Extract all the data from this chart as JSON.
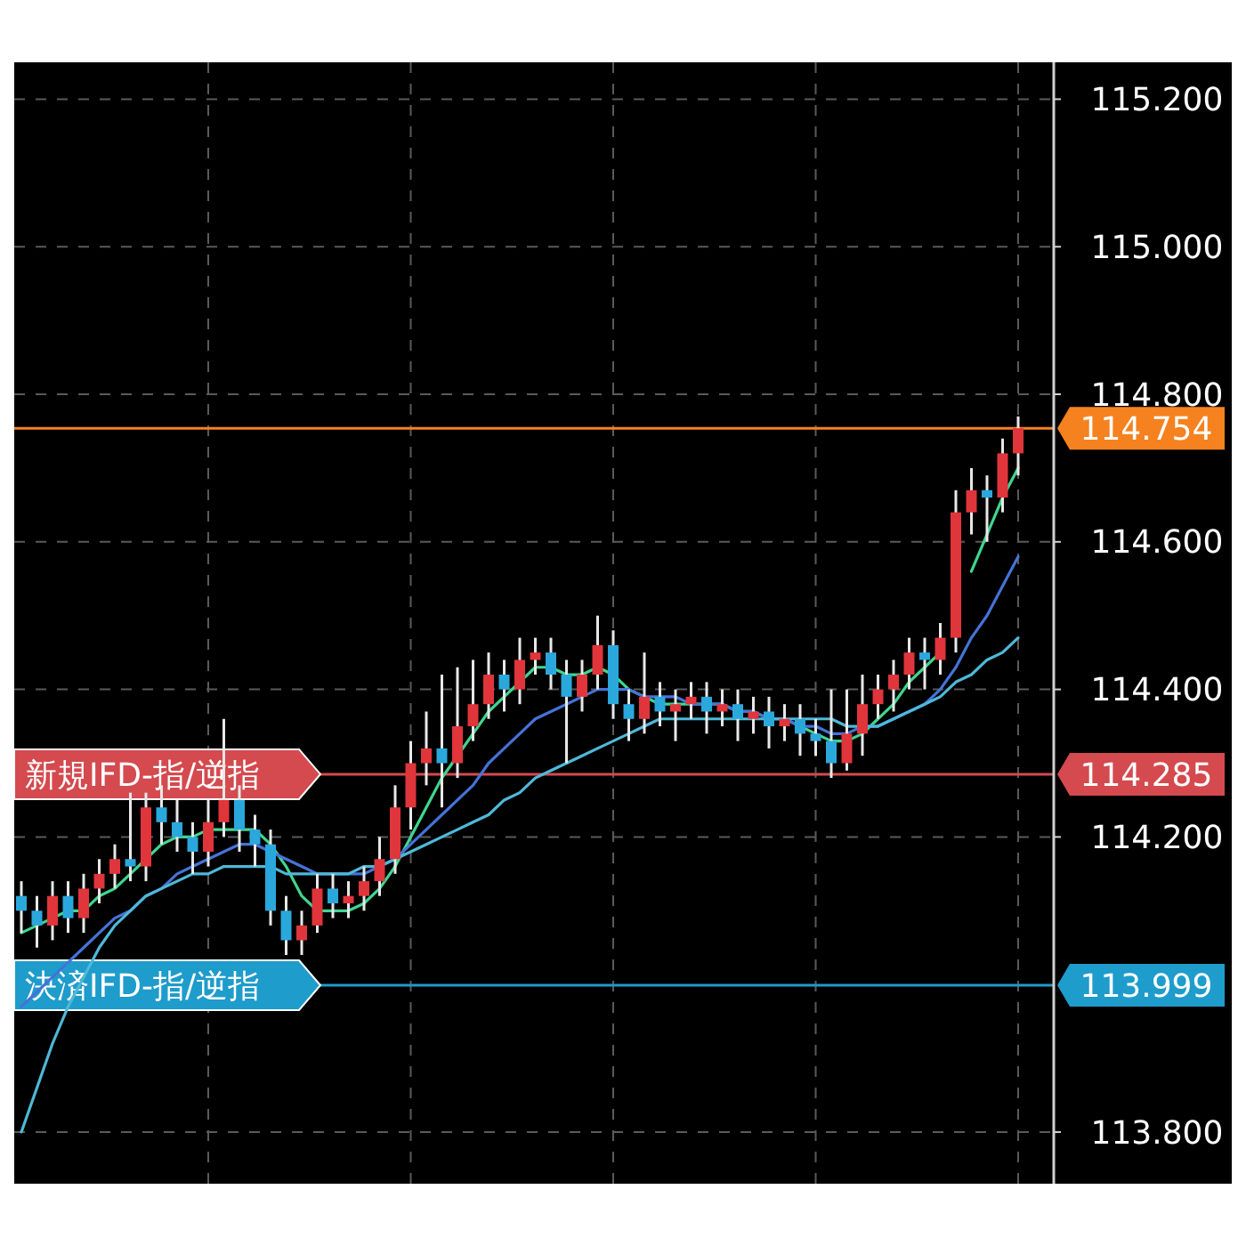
{
  "chart_data": {
    "type": "candlestick",
    "categories": [
      null,
      null,
      null,
      null,
      null,
      null,
      null,
      null,
      null,
      null,
      null,
      null,
      null,
      null,
      null,
      null,
      null,
      null,
      null,
      null,
      null,
      null,
      null,
      null,
      null,
      null,
      null,
      null,
      null,
      null,
      null,
      null,
      null,
      null,
      null,
      null,
      null,
      null,
      null,
      null,
      null,
      null,
      null,
      null,
      null,
      null,
      null,
      null,
      null,
      null,
      null,
      null,
      null,
      null,
      null,
      null,
      null,
      null,
      null,
      null,
      null,
      null,
      null,
      null,
      null
    ],
    "ohlc": [
      [
        114.12,
        114.14,
        114.07,
        114.1
      ],
      [
        114.1,
        114.12,
        114.05,
        114.08
      ],
      [
        114.08,
        114.14,
        114.06,
        114.12
      ],
      [
        114.12,
        114.14,
        114.07,
        114.09
      ],
      [
        114.09,
        114.15,
        114.07,
        114.13
      ],
      [
        114.13,
        114.17,
        114.11,
        114.15
      ],
      [
        114.15,
        114.19,
        114.13,
        114.17
      ],
      [
        114.17,
        114.26,
        114.14,
        114.16
      ],
      [
        114.16,
        114.26,
        114.14,
        114.24
      ],
      [
        114.24,
        114.27,
        114.19,
        114.22
      ],
      [
        114.22,
        114.25,
        114.18,
        114.2
      ],
      [
        114.2,
        114.22,
        114.15,
        114.18
      ],
      [
        114.18,
        114.25,
        114.16,
        114.22
      ],
      [
        114.22,
        114.36,
        114.2,
        114.25
      ],
      [
        114.25,
        114.27,
        114.18,
        114.21
      ],
      [
        114.21,
        114.23,
        114.16,
        114.19
      ],
      [
        114.19,
        114.21,
        114.08,
        114.1
      ],
      [
        114.1,
        114.12,
        114.04,
        114.06
      ],
      [
        114.06,
        114.1,
        114.04,
        114.08
      ],
      [
        114.08,
        114.15,
        114.07,
        114.13
      ],
      [
        114.13,
        114.15,
        114.09,
        114.11
      ],
      [
        114.11,
        114.14,
        114.09,
        114.12
      ],
      [
        114.12,
        114.16,
        114.1,
        114.14
      ],
      [
        114.14,
        114.2,
        114.12,
        114.17
      ],
      [
        114.17,
        114.27,
        114.15,
        114.24
      ],
      [
        114.24,
        114.33,
        114.21,
        114.3
      ],
      [
        114.3,
        114.37,
        114.27,
        114.32
      ],
      [
        114.32,
        114.42,
        114.24,
        114.3
      ],
      [
        114.3,
        114.43,
        114.28,
        114.35
      ],
      [
        114.35,
        114.44,
        114.33,
        114.38
      ],
      [
        114.38,
        114.45,
        114.36,
        114.42
      ],
      [
        114.42,
        114.44,
        114.37,
        114.4
      ],
      [
        114.4,
        114.47,
        114.38,
        114.44
      ],
      [
        114.44,
        114.47,
        114.42,
        114.45
      ],
      [
        114.45,
        114.47,
        114.4,
        114.42
      ],
      [
        114.42,
        114.44,
        114.3,
        114.39
      ],
      [
        114.39,
        114.44,
        114.37,
        114.42
      ],
      [
        114.42,
        114.5,
        114.4,
        114.46
      ],
      [
        114.46,
        114.48,
        114.36,
        114.38
      ],
      [
        114.38,
        114.4,
        114.33,
        114.36
      ],
      [
        114.36,
        114.45,
        114.34,
        114.39
      ],
      [
        114.39,
        114.41,
        114.35,
        114.37
      ],
      [
        114.37,
        114.4,
        114.33,
        114.38
      ],
      [
        114.38,
        114.41,
        114.36,
        114.39
      ],
      [
        114.39,
        114.41,
        114.34,
        114.37
      ],
      [
        114.37,
        114.4,
        114.35,
        114.38
      ],
      [
        114.38,
        114.4,
        114.33,
        114.36
      ],
      [
        114.36,
        114.39,
        114.34,
        114.37
      ],
      [
        114.37,
        114.39,
        114.32,
        114.35
      ],
      [
        114.35,
        114.38,
        114.33,
        114.36
      ],
      [
        114.36,
        114.38,
        114.31,
        114.34
      ],
      [
        114.34,
        114.36,
        114.31,
        114.33
      ],
      [
        114.33,
        114.4,
        114.28,
        114.3
      ],
      [
        114.3,
        114.4,
        114.29,
        114.34
      ],
      [
        114.34,
        114.42,
        114.31,
        114.38
      ],
      [
        114.38,
        114.42,
        114.36,
        114.4
      ],
      [
        114.4,
        114.44,
        114.37,
        114.42
      ],
      [
        114.42,
        114.47,
        114.4,
        114.45
      ],
      [
        114.45,
        114.47,
        114.4,
        114.44
      ],
      [
        114.44,
        114.49,
        114.42,
        114.47
      ],
      [
        114.47,
        114.67,
        114.45,
        114.64
      ],
      [
        114.64,
        114.7,
        114.61,
        114.67
      ],
      [
        114.67,
        114.69,
        114.6,
        114.66
      ],
      [
        114.66,
        114.74,
        114.64,
        114.72
      ],
      [
        114.72,
        114.77,
        114.69,
        114.754
      ]
    ],
    "series": [
      {
        "type": "line",
        "color": "#3fd68f",
        "values": [
          114.07,
          114.08,
          114.09,
          114.1,
          114.1,
          114.12,
          114.13,
          114.15,
          114.17,
          114.19,
          114.2,
          114.2,
          114.21,
          114.21,
          114.21,
          114.21,
          114.19,
          114.16,
          114.12,
          114.1,
          114.1,
          114.1,
          114.11,
          114.13,
          114.16,
          114.2,
          114.24,
          114.28,
          114.31,
          114.34,
          114.37,
          114.39,
          114.41,
          114.43,
          114.43,
          114.42,
          114.42,
          114.43,
          114.42,
          114.4,
          114.39,
          114.38,
          114.38,
          114.38,
          114.38,
          114.38,
          114.37,
          114.37,
          114.36,
          114.36,
          114.35,
          114.34,
          114.33,
          114.33,
          114.34,
          114.36,
          114.38,
          114.41,
          114.43,
          114.45,
          null,
          114.56,
          114.61,
          114.66,
          114.7
        ]
      },
      {
        "type": "line",
        "color": "#4573d8",
        "values": [
          113.97,
          113.99,
          114.01,
          114.03,
          114.05,
          114.07,
          114.09,
          114.1,
          114.12,
          114.13,
          114.15,
          114.16,
          114.17,
          114.18,
          114.19,
          114.19,
          114.18,
          114.17,
          114.16,
          114.15,
          114.15,
          114.15,
          114.15,
          114.16,
          114.17,
          114.19,
          114.21,
          114.23,
          114.25,
          114.27,
          114.3,
          114.32,
          114.34,
          114.36,
          114.37,
          114.38,
          114.39,
          114.4,
          114.4,
          114.4,
          114.39,
          114.39,
          114.39,
          114.38,
          114.38,
          114.38,
          114.37,
          114.37,
          114.36,
          114.36,
          114.35,
          114.35,
          114.34,
          114.34,
          114.35,
          114.35,
          114.36,
          114.37,
          114.38,
          114.4,
          114.43,
          114.47,
          114.5,
          114.54,
          114.58
        ]
      },
      {
        "type": "line",
        "color": "#4fb8d8",
        "values": [
          113.8,
          113.86,
          113.92,
          113.97,
          114.01,
          114.05,
          114.08,
          114.1,
          114.12,
          114.13,
          114.14,
          114.15,
          114.15,
          114.16,
          114.16,
          114.16,
          114.16,
          114.15,
          114.15,
          114.15,
          114.15,
          114.15,
          114.16,
          114.16,
          114.17,
          114.18,
          114.19,
          114.2,
          114.21,
          114.22,
          114.23,
          114.25,
          114.26,
          114.28,
          114.29,
          114.3,
          114.31,
          114.32,
          114.33,
          114.34,
          114.35,
          114.36,
          114.36,
          114.36,
          114.36,
          114.36,
          114.36,
          114.36,
          114.36,
          114.36,
          114.36,
          114.36,
          114.36,
          114.35,
          114.35,
          114.35,
          114.36,
          114.37,
          114.38,
          114.39,
          114.41,
          114.42,
          114.44,
          114.45,
          114.47
        ]
      }
    ],
    "ylim": [
      113.73,
      115.25
    ],
    "yticks": [
      {
        "value": 113.8,
        "label": "113.800"
      },
      {
        "value": 114.2,
        "label": "114.200"
      },
      {
        "value": 114.4,
        "label": "114.400"
      },
      {
        "value": 114.6,
        "label": "114.600"
      },
      {
        "value": 114.8,
        "label": "114.800"
      },
      {
        "value": 115.0,
        "label": "115.000"
      },
      {
        "value": 115.2,
        "label": "115.200"
      }
    ],
    "ref_lines": [
      {
        "axis": "y",
        "value": 114.754,
        "color": "#f5821f"
      },
      {
        "axis": "y",
        "value": 114.285,
        "label": "新規IFD-指/逆指",
        "color": "#d44a4f"
      },
      {
        "axis": "y",
        "value": 113.999,
        "label": "決済IFD-指/逆指",
        "color": "#1e9ccb"
      }
    ],
    "annotations": [
      "114.754",
      "114.285",
      "113.999"
    ],
    "grid": true
  }
}
